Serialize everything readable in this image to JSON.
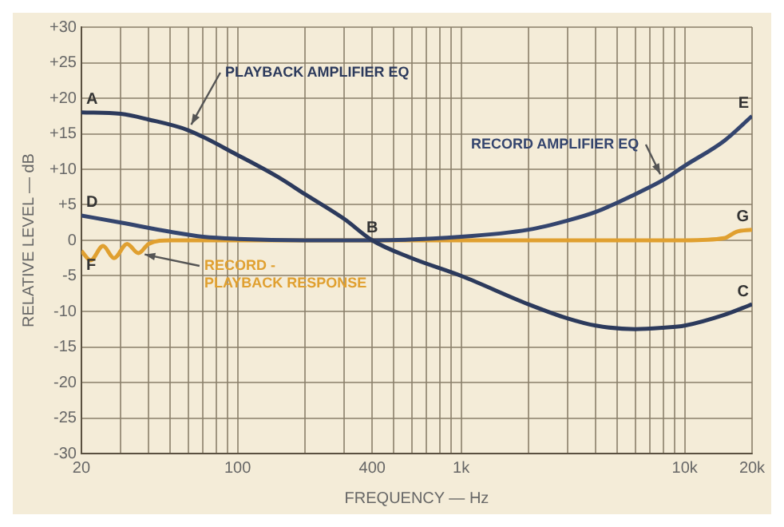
{
  "chart_data": {
    "type": "line",
    "xlabel": "FREQUENCY — Hz",
    "ylabel": "RELATIVE LEVEL — dB",
    "log": "x",
    "grid": true,
    "marker": "none",
    "line_style": "solid",
    "xlim": [
      20,
      20000
    ],
    "ylim": [
      -30,
      30
    ],
    "xticks": [
      {
        "value": 20,
        "label": "20"
      },
      {
        "value": 30,
        "label": null
      },
      {
        "value": 40,
        "label": null
      },
      {
        "value": 50,
        "label": null
      },
      {
        "value": 60,
        "label": null
      },
      {
        "value": 70,
        "label": null
      },
      {
        "value": 80,
        "label": null
      },
      {
        "value": 90,
        "label": null
      },
      {
        "value": 100,
        "label": "100"
      },
      {
        "value": 200,
        "label": null
      },
      {
        "value": 300,
        "label": null
      },
      {
        "value": 400,
        "label": "400"
      },
      {
        "value": 500,
        "label": null
      },
      {
        "value": 600,
        "label": null
      },
      {
        "value": 700,
        "label": null
      },
      {
        "value": 800,
        "label": null
      },
      {
        "value": 900,
        "label": null
      },
      {
        "value": 1000,
        "label": "1k"
      },
      {
        "value": 2000,
        "label": null
      },
      {
        "value": 3000,
        "label": null
      },
      {
        "value": 4000,
        "label": null
      },
      {
        "value": 5000,
        "label": null
      },
      {
        "value": 6000,
        "label": null
      },
      {
        "value": 7000,
        "label": null
      },
      {
        "value": 8000,
        "label": null
      },
      {
        "value": 9000,
        "label": null
      },
      {
        "value": 10000,
        "label": "10k"
      },
      {
        "value": 20000,
        "label": "20k"
      }
    ],
    "yticks": [
      {
        "value": 30,
        "label": "+30"
      },
      {
        "value": 25,
        "label": "+25"
      },
      {
        "value": 20,
        "label": "+20"
      },
      {
        "value": 15,
        "label": "+15"
      },
      {
        "value": 10,
        "label": "+10"
      },
      {
        "value": 5,
        "label": "+5"
      },
      0,
      -5,
      -10,
      -15,
      -20,
      -25,
      -30
    ],
    "series": [
      {
        "name": "PLAYBACK AMPLIFIER EQ",
        "color": "#2c3a5c",
        "x": [
          20,
          30,
          40,
          60,
          100,
          150,
          200,
          300,
          400,
          600,
          1000,
          2000,
          3000,
          4000,
          6000,
          8000,
          10000,
          15000,
          20000
        ],
        "values": [
          18,
          17.8,
          17,
          15.5,
          12,
          9,
          6.5,
          3,
          0,
          -2.5,
          -5,
          -9,
          -11,
          -12,
          -12.5,
          -12.3,
          -12,
          -10.5,
          -9
        ]
      },
      {
        "name": "RECORD AMPLIFIER EQ",
        "color": "#34456e",
        "x": [
          20,
          30,
          50,
          70,
          100,
          200,
          400,
          1000,
          2000,
          3000,
          4000,
          6000,
          8000,
          10000,
          15000,
          20000
        ],
        "values": [
          3.5,
          2.5,
          1.2,
          0.5,
          0.2,
          0,
          0,
          0.5,
          1.5,
          2.8,
          4,
          6.5,
          8.5,
          10.5,
          14,
          17.5
        ]
      },
      {
        "name": "RECORD - PLAYBACK RESPONSE",
        "color": "#e0a030",
        "x": [
          20,
          22,
          25,
          28,
          32,
          36,
          40,
          50,
          70,
          100,
          1000,
          10000,
          15000,
          17000,
          20000
        ],
        "values": [
          -1.5,
          -2.8,
          -0.8,
          -2.5,
          -0.5,
          -1.8,
          -0.5,
          0,
          0,
          0,
          0,
          0,
          0.3,
          1.2,
          1.5
        ]
      }
    ],
    "annotations": [
      {
        "text": "A",
        "x": 20,
        "y": 18
      },
      {
        "text": "B",
        "x": 400,
        "y": 0
      },
      {
        "text": "C",
        "x": 20000,
        "y": -9
      },
      {
        "text": "D",
        "x": 20,
        "y": 3.5
      },
      {
        "text": "E",
        "x": 20000,
        "y": 17.5
      },
      {
        "text": "F",
        "x": 20,
        "y": -1.5
      },
      {
        "text": "G",
        "x": 20000,
        "y": 1.5
      }
    ]
  }
}
